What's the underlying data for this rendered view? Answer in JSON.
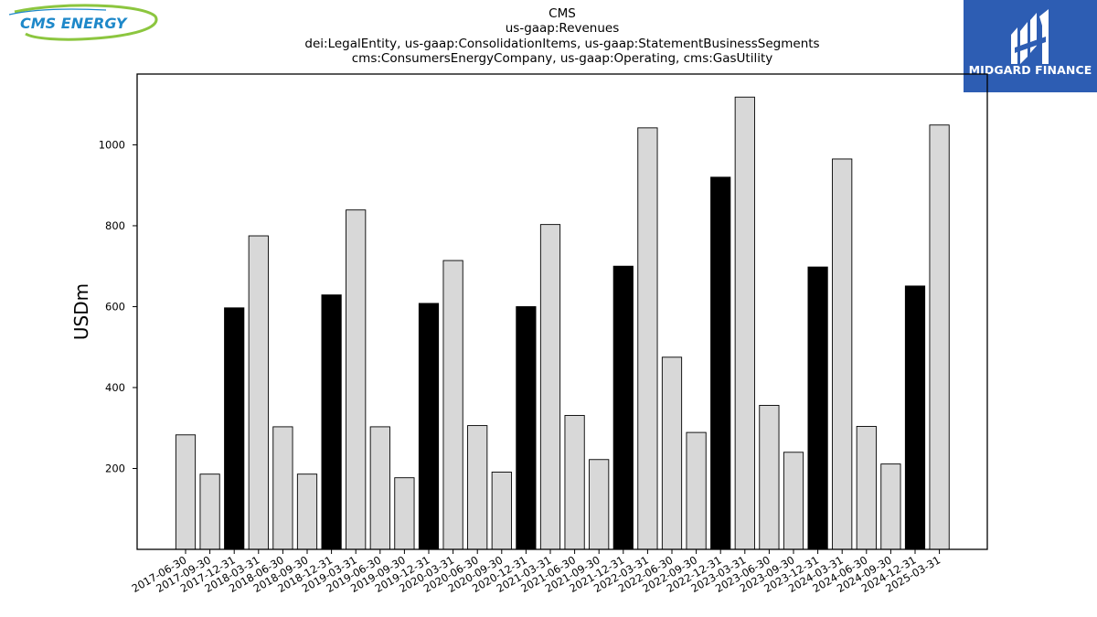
{
  "brand": {
    "left_logo_text": "CMS ENERGY",
    "right_logo_text": "MIDGARD FINANCE",
    "right_logo_bg": "#2d5db3"
  },
  "chart_data": {
    "type": "bar",
    "title": "CMS",
    "subtitle_lines": [
      "us-gaap:Revenues",
      "dei:LegalEntity, us-gaap:ConsolidationItems, us-gaap:StatementBusinessSegments",
      "cms:ConsumersEnergyCompany, us-gaap:Operating, cms:GasUtility"
    ],
    "xlabel": "",
    "ylabel": "USDm",
    "ylim": [
      0,
      1175
    ],
    "yticks": [
      200,
      400,
      600,
      800,
      1000
    ],
    "grid": false,
    "bar_colors": {
      "normal": "#d8d8d8",
      "highlight": "#000000",
      "edge": "#000000"
    },
    "categories": [
      "2017-06-30",
      "2017-09-30",
      "2017-12-31",
      "2018-03-31",
      "2018-06-30",
      "2018-09-30",
      "2018-12-31",
      "2019-03-31",
      "2019-06-30",
      "2019-09-30",
      "2019-12-31",
      "2020-03-31",
      "2020-06-30",
      "2020-09-30",
      "2020-12-31",
      "2021-03-31",
      "2021-06-30",
      "2021-09-30",
      "2021-12-31",
      "2022-03-31",
      "2022-06-30",
      "2022-09-30",
      "2022-12-31",
      "2023-03-31",
      "2023-06-30",
      "2023-09-30",
      "2023-12-31",
      "2024-03-31",
      "2024-06-30",
      "2024-09-30",
      "2024-12-31",
      "2025-03-31"
    ],
    "values": [
      283,
      186,
      597,
      775,
      303,
      186,
      629,
      839,
      303,
      177,
      608,
      714,
      306,
      191,
      600,
      803,
      331,
      222,
      700,
      1042,
      475,
      289,
      920,
      1118,
      356,
      240,
      698,
      965,
      304,
      211,
      651,
      1049
    ],
    "highlighted": [
      false,
      false,
      true,
      false,
      false,
      false,
      true,
      false,
      false,
      false,
      true,
      false,
      false,
      false,
      true,
      false,
      false,
      false,
      true,
      false,
      false,
      false,
      true,
      false,
      false,
      false,
      true,
      false,
      false,
      false,
      true,
      false
    ]
  }
}
